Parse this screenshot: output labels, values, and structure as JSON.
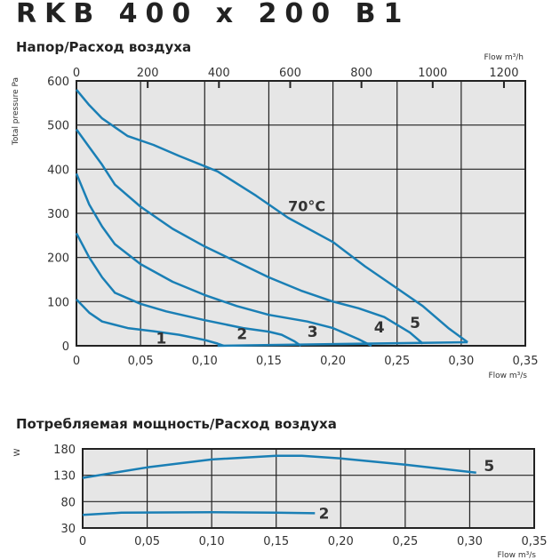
{
  "title": "RKB 400 x 200 B1",
  "chart_data": [
    {
      "type": "line",
      "title": "Напор/Расход воздуха",
      "xlabel": "Flow m³/s",
      "x2label": "Flow m³/h",
      "ylabel": "Total pressure Pa",
      "xlim": [
        0,
        0.35
      ],
      "ylim": [
        0,
        600
      ],
      "grid": true,
      "xticks": [
        "0",
        "0,05",
        "0,10",
        "0,15",
        "0,20",
        "0,25",
        "0,30",
        "0,35"
      ],
      "x2ticks": [
        "0",
        "200",
        "400",
        "600",
        "800",
        "1000",
        "1200"
      ],
      "yticks": [
        "0",
        "100",
        "200",
        "300",
        "400",
        "500",
        "600"
      ],
      "annotation": "70°C",
      "series": [
        {
          "name": "1",
          "points": [
            [
              0,
              105
            ],
            [
              0.01,
              75
            ],
            [
              0.02,
              55
            ],
            [
              0.04,
              40
            ],
            [
              0.06,
              33
            ],
            [
              0.08,
              25
            ],
            [
              0.1,
              13
            ],
            [
              0.11,
              5
            ],
            [
              0.115,
              0
            ]
          ]
        },
        {
          "name": "2",
          "points": [
            [
              0,
              255
            ],
            [
              0.01,
              200
            ],
            [
              0.02,
              155
            ],
            [
              0.03,
              120
            ],
            [
              0.05,
              95
            ],
            [
              0.07,
              78
            ],
            [
              0.1,
              58
            ],
            [
              0.13,
              40
            ],
            [
              0.15,
              32
            ],
            [
              0.16,
              25
            ],
            [
              0.17,
              10
            ],
            [
              0.175,
              0
            ]
          ]
        },
        {
          "name": "3",
          "points": [
            [
              0,
              390
            ],
            [
              0.01,
              320
            ],
            [
              0.02,
              270
            ],
            [
              0.03,
              230
            ],
            [
              0.05,
              185
            ],
            [
              0.075,
              145
            ],
            [
              0.1,
              115
            ],
            [
              0.125,
              90
            ],
            [
              0.15,
              70
            ],
            [
              0.18,
              55
            ],
            [
              0.2,
              40
            ],
            [
              0.22,
              15
            ],
            [
              0.23,
              0
            ]
          ]
        },
        {
          "name": "4",
          "points": [
            [
              0,
              490
            ],
            [
              0.01,
              450
            ],
            [
              0.02,
              410
            ],
            [
              0.03,
              365
            ],
            [
              0.05,
              315
            ],
            [
              0.075,
              265
            ],
            [
              0.1,
              225
            ],
            [
              0.125,
              190
            ],
            [
              0.15,
              155
            ],
            [
              0.175,
              125
            ],
            [
              0.2,
              100
            ],
            [
              0.22,
              85
            ],
            [
              0.24,
              65
            ],
            [
              0.26,
              30
            ],
            [
              0.27,
              5
            ]
          ]
        },
        {
          "name": "5",
          "points": [
            [
              0,
              580
            ],
            [
              0.01,
              545
            ],
            [
              0.02,
              515
            ],
            [
              0.04,
              475
            ],
            [
              0.06,
              455
            ],
            [
              0.08,
              430
            ],
            [
              0.11,
              395
            ],
            [
              0.14,
              340
            ],
            [
              0.165,
              290
            ],
            [
              0.2,
              235
            ],
            [
              0.225,
              180
            ],
            [
              0.25,
              130
            ],
            [
              0.27,
              90
            ],
            [
              0.29,
              40
            ],
            [
              0.305,
              8
            ]
          ]
        },
        {
          "points": [
            [
              0.11,
              0
            ],
            [
              0.305,
              8
            ]
          ]
        }
      ]
    },
    {
      "type": "line",
      "title": "Потребляемая мощность/Расход воздуха",
      "xlabel": "Flow m³/s",
      "ylabel": "W",
      "xlim": [
        0,
        0.35
      ],
      "ylim": [
        30,
        180
      ],
      "grid": true,
      "xticks": [
        "0",
        "0,05",
        "0,10",
        "0,15",
        "0,20",
        "0,25",
        "0,30",
        "0,35"
      ],
      "yticks": [
        "30",
        "80",
        "130",
        "180"
      ],
      "series": [
        {
          "name": "5",
          "points": [
            [
              0,
              125
            ],
            [
              0.05,
              145
            ],
            [
              0.1,
              160
            ],
            [
              0.15,
              167
            ],
            [
              0.17,
              167
            ],
            [
              0.2,
              162
            ],
            [
              0.25,
              150
            ],
            [
              0.305,
              135
            ]
          ]
        },
        {
          "name": "2",
          "points": [
            [
              0,
              55
            ],
            [
              0.03,
              59
            ],
            [
              0.1,
              60
            ],
            [
              0.15,
              59
            ],
            [
              0.18,
              58
            ]
          ]
        }
      ]
    }
  ],
  "colors": {
    "line": "#1a7fb5",
    "plot_bg": "#e6e6e6",
    "grid": "#222"
  }
}
